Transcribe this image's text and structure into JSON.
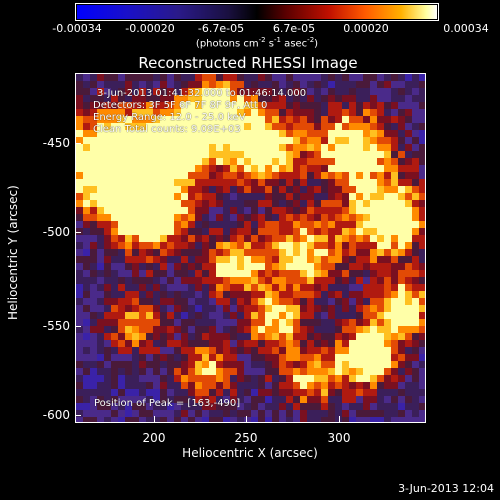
{
  "colorbar": {
    "ticks": [
      "-0.00034",
      "-0.00020",
      "-6.7e-05",
      "6.7e-05",
      "0.00020",
      "0.00034"
    ],
    "unit_prefix": "(photons cm",
    "unit_sup1": "-2",
    "unit_mid1": " s",
    "unit_sup2": "-1",
    "unit_mid2": " asec",
    "unit_sup3": "-2",
    "unit_suffix": ")"
  },
  "title": "Reconstructed RHESSI Image",
  "annotations": {
    "time_range": "3-Jun-2013 01:41:32.000 to 01:46:14.000",
    "detectors": "Detectors: 3F 5F 6F 7F 8F 9F, Att 0",
    "energy": "Energy Range: 12.0 - 25.0 keV",
    "clean": "Clean    Total counts: 9.09E+03",
    "peak": "Position of Peak = [163,-490]"
  },
  "axes": {
    "xlabel": "Heliocentric X (arcsec)",
    "ylabel": "Heliocentric Y (arcsec)",
    "xticks": [
      "200",
      "250",
      "300"
    ],
    "yticks": [
      "-450",
      "-500",
      "-550",
      "-600"
    ]
  },
  "footer": "3-Jun-2013 12:04",
  "colors": {
    "background": "#000000",
    "foreground": "#ffffff"
  }
}
